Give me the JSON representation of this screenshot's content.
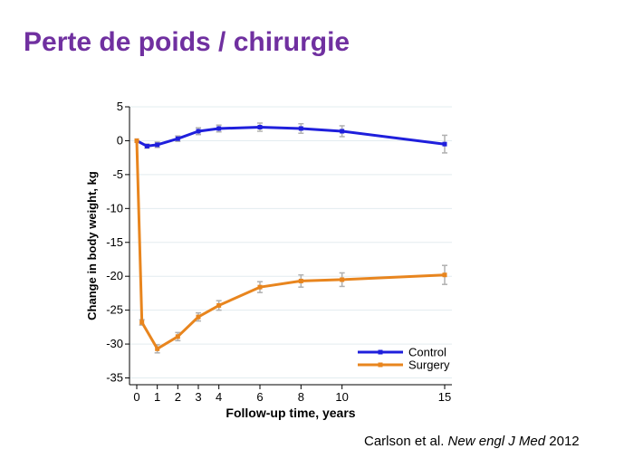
{
  "slide": {
    "title": "Perte de poids / chirurgie"
  },
  "citation": {
    "authors": "Carlson et al.",
    "journal": "New engl J Med",
    "year": "2012"
  },
  "chart_data": {
    "type": "line",
    "title": "",
    "xlabel": "Follow-up time, years",
    "ylabel": "Change in body weight, kg",
    "xlim": [
      0,
      15
    ],
    "ylim": [
      -36,
      5
    ],
    "x_ticks": [
      0,
      1,
      2,
      3,
      4,
      6,
      8,
      10,
      15
    ],
    "y_ticks": [
      5,
      0,
      -5,
      -10,
      -15,
      -20,
      -25,
      -30,
      -35
    ],
    "grid": true,
    "legend_position": "bottom-right",
    "series": [
      {
        "name": "Control",
        "color": "#1f1fdc",
        "points": [
          {
            "x": 0,
            "y": 0,
            "err": 0
          },
          {
            "x": 0.5,
            "y": -0.8,
            "err": 0.3
          },
          {
            "x": 1,
            "y": -0.6,
            "err": 0.4
          },
          {
            "x": 2,
            "y": 0.3,
            "err": 0.4
          },
          {
            "x": 3,
            "y": 1.4,
            "err": 0.5
          },
          {
            "x": 4,
            "y": 1.8,
            "err": 0.5
          },
          {
            "x": 6,
            "y": 2.0,
            "err": 0.6
          },
          {
            "x": 8,
            "y": 1.8,
            "err": 0.7
          },
          {
            "x": 10,
            "y": 1.4,
            "err": 0.8
          },
          {
            "x": 15,
            "y": -0.5,
            "err": 1.3
          }
        ]
      },
      {
        "name": "Surgery",
        "color": "#e8851e",
        "points": [
          {
            "x": 0,
            "y": 0,
            "err": 0
          },
          {
            "x": 0.25,
            "y": -26.8,
            "err": 0.4
          },
          {
            "x": 1,
            "y": -30.7,
            "err": 0.6
          },
          {
            "x": 2,
            "y": -28.9,
            "err": 0.6
          },
          {
            "x": 3,
            "y": -26.0,
            "err": 0.6
          },
          {
            "x": 4,
            "y": -24.3,
            "err": 0.7
          },
          {
            "x": 6,
            "y": -21.6,
            "err": 0.8
          },
          {
            "x": 8,
            "y": -20.7,
            "err": 0.9
          },
          {
            "x": 10,
            "y": -20.5,
            "err": 1.0
          },
          {
            "x": 15,
            "y": -19.8,
            "err": 1.4
          }
        ]
      }
    ]
  }
}
